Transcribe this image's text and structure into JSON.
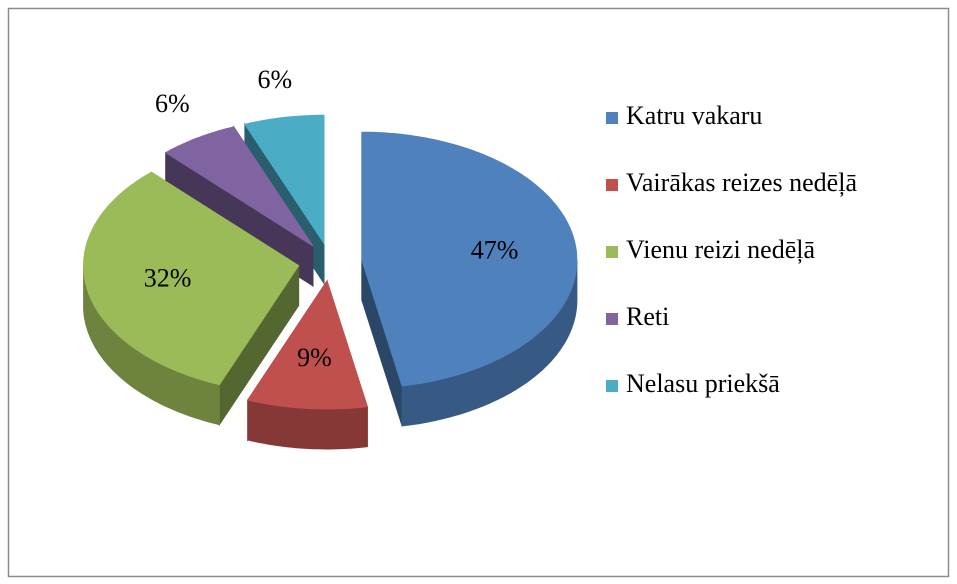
{
  "chart_data": {
    "type": "pie",
    "categories": [
      "Katru vakaru",
      "Vairākas reizes nedēļā",
      "Vienu reizi nedēļā",
      "Reti",
      "Nelasu priekšā"
    ],
    "values": [
      47,
      9,
      32,
      6,
      6
    ],
    "value_labels": [
      "47%",
      "9%",
      "32%",
      "6%",
      "6%"
    ],
    "colors": [
      "#4f81bd",
      "#c0504d",
      "#9bbb59",
      "#8064a2",
      "#4bacc6"
    ],
    "legend": "right"
  }
}
